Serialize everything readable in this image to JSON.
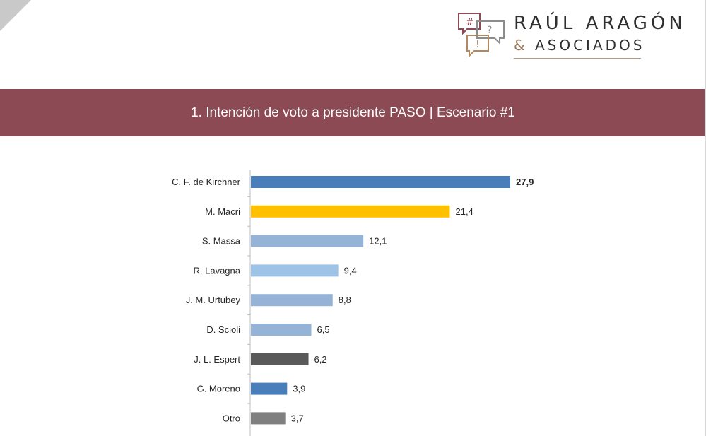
{
  "header": {
    "logo_name": "RAÚL ARAGÓN",
    "logo_amp": "&",
    "logo_sub": "ASOCIADOS",
    "icon_glyphs": [
      "#",
      "?",
      "!"
    ],
    "colors": {
      "band": "#8c4a54",
      "icon_dark": "#8c4a54",
      "icon_mid": "#b38860",
      "icon_light": "#8c8c8c"
    }
  },
  "title": "1. Intención de voto a presidente PASO | Escenario #1",
  "chart_data": {
    "type": "bar",
    "orientation": "horizontal",
    "categories": [
      "C. F. de Kirchner",
      "M. Macri",
      "S. Massa",
      "R. Lavagna",
      "J. M. Urtubey",
      "D. Scioli",
      "J. L. Espert",
      "G. Moreno",
      "Otro"
    ],
    "values": [
      27.9,
      21.4,
      12.1,
      9.4,
      8.8,
      6.5,
      6.2,
      3.9,
      3.7
    ],
    "value_labels": [
      "27,9",
      "21,4",
      "12,1",
      "9,4",
      "8,8",
      "6,5",
      "6,2",
      "3,9",
      "3,7"
    ],
    "bar_colors": [
      "#4a7ebb",
      "#ffc000",
      "#95b3d7",
      "#9dc3e6",
      "#95b3d7",
      "#95b3d7",
      "#595959",
      "#4a7ebb",
      "#7f7f7f"
    ],
    "bold_labels": [
      true,
      false,
      false,
      false,
      false,
      false,
      false,
      false,
      false
    ],
    "xlim": [
      0,
      28
    ],
    "grid": false,
    "legend": "none"
  }
}
